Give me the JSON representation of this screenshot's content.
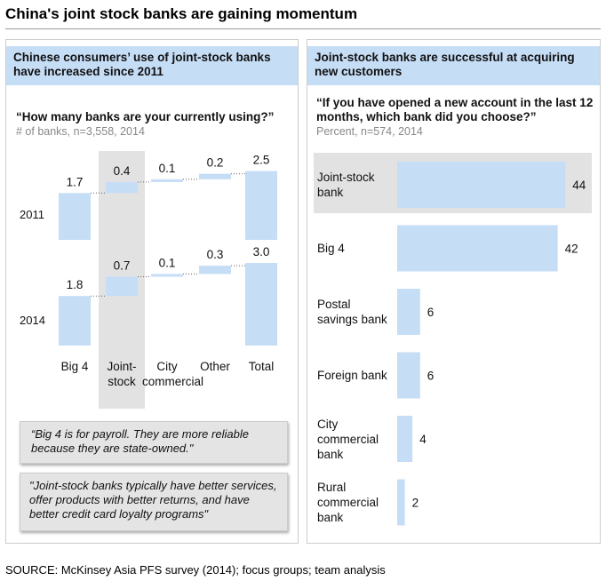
{
  "title": "China's joint stock banks are gaining momentum",
  "source": "SOURCE: McKinsey Asia PFS survey (2014); focus groups; team analysis",
  "chart_data": [
    {
      "type": "waterfall",
      "header": "Chinese consumers’ use of  joint-stock banks have increased since 2011",
      "question": "“How many banks are your currently using?”",
      "subtitle": "# of banks, n=3,558,  2014",
      "categories": [
        "Big 4",
        "Joint-stock",
        "City commercial",
        "Other",
        "Total"
      ],
      "color": "#c6ddf6",
      "series": [
        {
          "name": "2011",
          "values": [
            1.7,
            0.4,
            0.1,
            0.2,
            2.5
          ]
        },
        {
          "name": "2014",
          "values": [
            1.8,
            0.7,
            0.1,
            0.3,
            3
          ],
          "value_labels": [
            "1.8",
            "0.7",
            "0.1",
            "0.3",
            "3.0"
          ]
        }
      ]
    },
    {
      "type": "hbar",
      "header": "Joint-stock banks are successful at acquiring new customers",
      "question": "“If you have opened a new account in the last 12 months, which bank did you choose?”",
      "subtitle": "Percent, n=574, 2014",
      "categories": [
        "Joint-stock bank",
        "Big 4",
        "Postal savings bank",
        "Foreign bank",
        "City commercial bank",
        "Rural commercial bank"
      ],
      "values": [
        44,
        42,
        6,
        6,
        4,
        2
      ],
      "color": "#c6ddf6"
    }
  ],
  "quotes": [
    "“Big 4 is for payroll. They are more reliable because they are state-owned.\"",
    "\"Joint-stock banks typically have better services, offer products with better returns, and have better credit card loyalty programs\""
  ]
}
